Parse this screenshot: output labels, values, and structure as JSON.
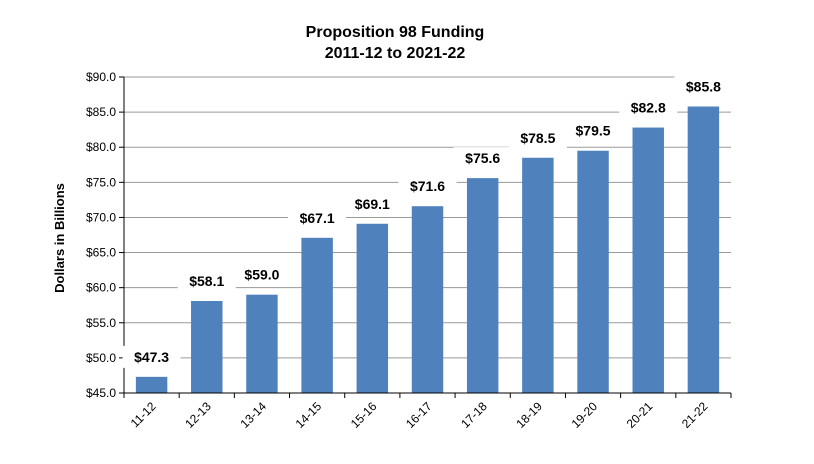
{
  "chart_data": {
    "type": "bar",
    "title": "Proposition 98 Funding",
    "subtitle": "2011-12 to 2021-22",
    "xlabel": "",
    "ylabel": "Dollars in Billions",
    "categories": [
      "11-12",
      "12-13",
      "13-14",
      "14-15",
      "15-16",
      "16-17",
      "17-18",
      "18-19",
      "19-20",
      "20-21",
      "21-22"
    ],
    "values": [
      47.3,
      58.1,
      59.0,
      67.1,
      69.1,
      71.6,
      75.6,
      78.5,
      79.5,
      82.8,
      85.8
    ],
    "value_labels": [
      "$47.3",
      "$58.1",
      "$59.0",
      "$67.1",
      "$69.1",
      "$71.6",
      "$75.6",
      "$78.5",
      "$79.5",
      "$82.8",
      "$85.8"
    ],
    "ylim": [
      45,
      90
    ],
    "yticks": [
      45,
      50,
      55,
      60,
      65,
      70,
      75,
      80,
      85,
      90
    ],
    "ytick_labels": [
      "$45.0",
      "$50.0",
      "$55.0",
      "$60.0",
      "$65.0",
      "$70.0",
      "$75.0",
      "$80.0",
      "$85.0",
      "$90.0"
    ],
    "grid": true,
    "bar_color": "#4f81bd"
  }
}
